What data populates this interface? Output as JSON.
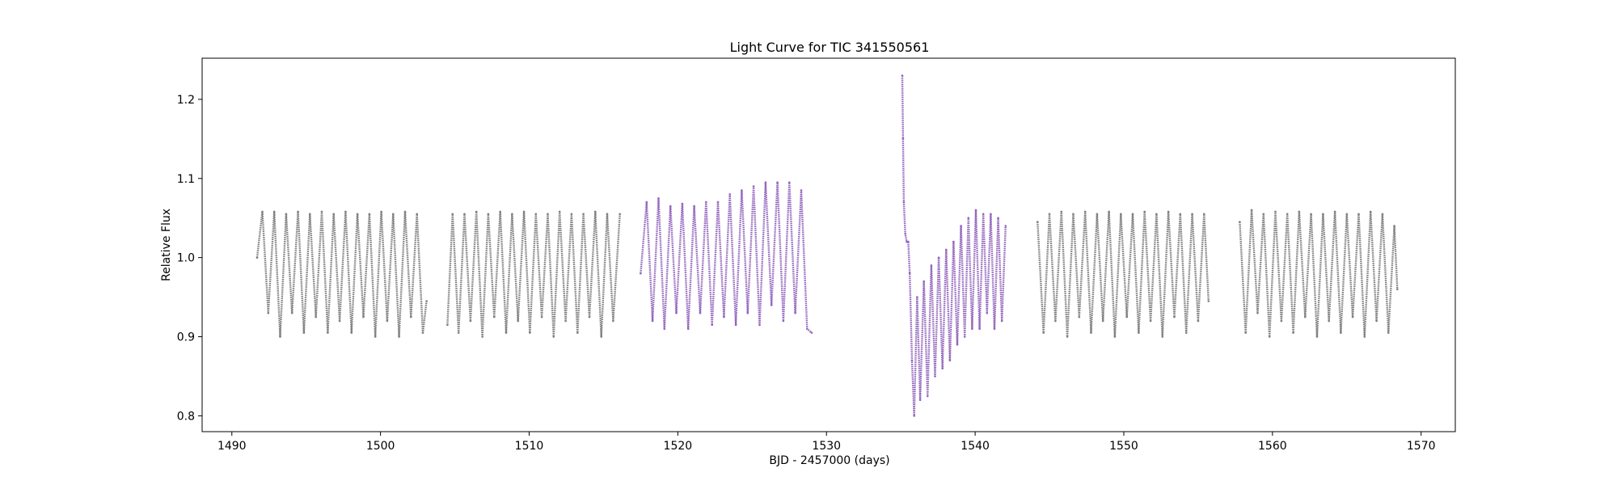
{
  "chart_data": {
    "type": "scatter",
    "title": "Light Curve for TIC 341550561",
    "xlabel": "BJD - 2457000 (days)",
    "ylabel": "Relative Flux",
    "xlim": [
      1488,
      1572.3
    ],
    "ylim": [
      0.78,
      1.252
    ],
    "xticks": [
      1490,
      1500,
      1510,
      1520,
      1530,
      1540,
      1550,
      1560,
      1570
    ],
    "xtick_labels": [
      "1490",
      "1500",
      "1510",
      "1520",
      "1530",
      "1540",
      "1550",
      "1560",
      "1570"
    ],
    "yticks": [
      0.8,
      0.9,
      1.0,
      1.1,
      1.2
    ],
    "ytick_labels": [
      "0.8",
      "0.9",
      "1.0",
      "1.1",
      "1.2"
    ],
    "grid": false,
    "legend": "none",
    "series": [
      {
        "color": "#808080",
        "x": [
          1491.7,
          1492.05,
          1492.45,
          1492.85,
          1493.25,
          1493.65,
          1494.05,
          1494.45,
          1494.85,
          1495.25,
          1495.65,
          1496.05,
          1496.45,
          1496.85,
          1497.25,
          1497.65,
          1498.05,
          1498.45,
          1498.85,
          1499.25,
          1499.65,
          1500.05,
          1500.45,
          1500.85,
          1501.25,
          1501.65,
          1502.05,
          1502.45,
          1502.85,
          1503.1
        ],
        "y": [
          1.0,
          1.058,
          0.93,
          1.058,
          0.9,
          1.055,
          0.93,
          1.058,
          0.905,
          1.055,
          0.925,
          1.058,
          0.905,
          1.055,
          0.92,
          1.058,
          0.905,
          1.055,
          0.925,
          1.055,
          0.9,
          1.058,
          0.92,
          1.055,
          0.9,
          1.058,
          0.925,
          1.055,
          0.905,
          0.945
        ]
      },
      {
        "color": "#808080",
        "x": [
          1504.5,
          1504.85,
          1505.25,
          1505.65,
          1506.05,
          1506.45,
          1506.85,
          1507.25,
          1507.65,
          1508.05,
          1508.45,
          1508.85,
          1509.25,
          1509.65,
          1510.05,
          1510.45,
          1510.85,
          1511.25,
          1511.65,
          1512.05,
          1512.45,
          1512.85,
          1513.25,
          1513.65,
          1514.05,
          1514.45,
          1514.85,
          1515.25,
          1515.65,
          1516.1
        ],
        "y": [
          0.915,
          1.055,
          0.905,
          1.055,
          0.92,
          1.058,
          0.9,
          1.055,
          0.925,
          1.058,
          0.905,
          1.055,
          0.92,
          1.058,
          0.905,
          1.055,
          0.925,
          1.055,
          0.9,
          1.058,
          0.92,
          1.055,
          0.905,
          1.055,
          0.925,
          1.058,
          0.9,
          1.055,
          0.92,
          1.055
        ]
      },
      {
        "color": "#9467bd",
        "x": [
          1517.5,
          1517.9,
          1518.3,
          1518.7,
          1519.1,
          1519.5,
          1519.9,
          1520.3,
          1520.7,
          1521.1,
          1521.5,
          1521.9,
          1522.3,
          1522.7,
          1523.1,
          1523.5,
          1523.9,
          1524.3,
          1524.7,
          1525.1,
          1525.5,
          1525.9,
          1526.3,
          1526.7,
          1527.1,
          1527.5,
          1527.9,
          1528.3,
          1528.7,
          1529.0
        ],
        "y": [
          0.98,
          1.07,
          0.92,
          1.075,
          0.91,
          1.065,
          0.93,
          1.068,
          0.91,
          1.065,
          0.93,
          1.07,
          0.915,
          1.07,
          0.925,
          1.08,
          0.915,
          1.085,
          0.93,
          1.09,
          0.915,
          1.095,
          0.94,
          1.095,
          0.92,
          1.095,
          0.93,
          1.085,
          0.91,
          0.905
        ]
      },
      {
        "color": "#9467bd",
        "x": [
          1535.1,
          1535.15,
          1535.2,
          1535.3,
          1535.4,
          1535.5,
          1535.6,
          1535.75,
          1535.9,
          1536.1,
          1536.3,
          1536.55,
          1536.8,
          1537.05,
          1537.3,
          1537.55,
          1537.8,
          1538.05,
          1538.3,
          1538.55,
          1538.8,
          1539.05,
          1539.3,
          1539.55,
          1539.8,
          1540.05,
          1540.3,
          1540.55,
          1540.8,
          1541.05,
          1541.3,
          1541.55,
          1541.8,
          1542.05
        ],
        "y": [
          1.23,
          1.15,
          1.07,
          1.03,
          1.02,
          1.02,
          0.98,
          0.87,
          0.8,
          0.95,
          0.82,
          0.97,
          0.825,
          0.99,
          0.85,
          1.0,
          0.86,
          1.01,
          0.87,
          1.02,
          0.89,
          1.04,
          0.9,
          1.05,
          0.91,
          1.06,
          0.91,
          1.055,
          0.93,
          1.055,
          0.91,
          1.05,
          0.92,
          1.04
        ]
      },
      {
        "color": "#808080",
        "x": [
          1544.2,
          1544.6,
          1545.0,
          1545.4,
          1545.8,
          1546.2,
          1546.6,
          1547.0,
          1547.4,
          1547.8,
          1548.2,
          1548.6,
          1549.0,
          1549.4,
          1549.8,
          1550.2,
          1550.6,
          1551.0,
          1551.4,
          1551.8,
          1552.2,
          1552.6,
          1553.0,
          1553.4,
          1553.8,
          1554.2,
          1554.6,
          1555.0,
          1555.4,
          1555.7
        ],
        "y": [
          1.045,
          0.905,
          1.055,
          0.92,
          1.058,
          0.9,
          1.055,
          0.925,
          1.058,
          0.905,
          1.055,
          0.92,
          1.058,
          0.9,
          1.055,
          0.925,
          1.055,
          0.905,
          1.058,
          0.92,
          1.055,
          0.9,
          1.058,
          0.925,
          1.055,
          0.905,
          1.055,
          0.92,
          1.055,
          0.945
        ]
      },
      {
        "color": "#808080",
        "x": [
          1557.8,
          1558.2,
          1558.6,
          1559.0,
          1559.4,
          1559.8,
          1560.2,
          1560.6,
          1561.0,
          1561.4,
          1561.8,
          1562.2,
          1562.6,
          1563.0,
          1563.4,
          1563.8,
          1564.2,
          1564.6,
          1565.0,
          1565.4,
          1565.8,
          1566.2,
          1566.6,
          1567.0,
          1567.4,
          1567.8,
          1568.2,
          1568.4
        ],
        "y": [
          1.045,
          0.905,
          1.06,
          0.93,
          1.055,
          0.9,
          1.058,
          0.92,
          1.055,
          0.905,
          1.058,
          0.925,
          1.055,
          0.9,
          1.055,
          0.92,
          1.058,
          0.905,
          1.055,
          0.925,
          1.055,
          0.9,
          1.058,
          0.92,
          1.055,
          0.905,
          1.04,
          0.96
        ]
      }
    ]
  }
}
